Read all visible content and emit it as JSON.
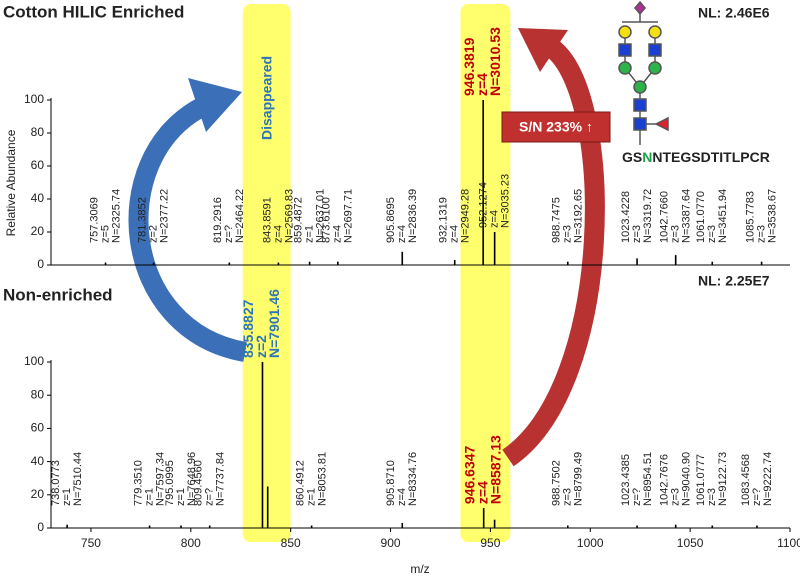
{
  "chart_data": [
    {
      "type": "spectrum",
      "title": "Cotton HILIC Enriched",
      "nl_label": "NL: 2.46E6",
      "y_label": "Relative Abundance",
      "xlim": [
        730,
        1100
      ],
      "ylim": [
        0,
        100
      ],
      "yticks": [
        0,
        20,
        40,
        60,
        80,
        100
      ],
      "color": "#000000",
      "x": [
        757.3069,
        781.3852,
        819.2916,
        843.8591,
        859.4872,
        873.61,
        905.8695,
        932.1319,
        946.3819,
        952.1274,
        988.7475,
        1023.4228,
        1042.766,
        1061.077,
        1085.7783
      ],
      "values": [
        1.5,
        1.5,
        1.5,
        1.5,
        2,
        2,
        8,
        3,
        100,
        20,
        2,
        4,
        6,
        2,
        2
      ],
      "mz_labels": [
        "757.3069",
        "781.3852",
        "819.2916",
        "843.8591",
        "859.4872",
        "873.6100",
        "905.8695",
        "932.1319",
        "946.3819",
        "952.1274",
        "988.7475",
        "1023.4228",
        "1042.7660",
        "1061.0770",
        "1085.7783"
      ],
      "z_labels": [
        "z=5",
        "z=2",
        "z=?",
        "z=4",
        "z=1",
        "z=4",
        "z=4",
        "z=4",
        "z=4",
        "z=4",
        "z=3",
        "z=3",
        "z=3",
        "z=3",
        "z=3"
      ],
      "n_labels": [
        "N=2325.74",
        "N=2377.22",
        "N=2464.22",
        "N=2569.83",
        "N=2637.01",
        "N=2697.71",
        "N=2836.39",
        "N=2949.28",
        "N=3010.53",
        "N=3035.23",
        "N=3192.65",
        "N=3319.72",
        "N=3387.64",
        "N=3451.94",
        "N=3538.67"
      ],
      "label_colors": [
        null,
        null,
        null,
        null,
        null,
        null,
        null,
        null,
        "#c00000",
        null,
        null,
        null,
        null,
        null,
        null
      ]
    },
    {
      "type": "spectrum",
      "title": "Non-enriched",
      "nl_label": "NL: 2.25E7",
      "x_label": "m/z",
      "xlim": [
        730,
        1100
      ],
      "xticks": [
        750,
        800,
        850,
        900,
        950,
        1000,
        1050,
        1100
      ],
      "ylim": [
        0,
        100
      ],
      "yticks": [
        0,
        20,
        40,
        60,
        80,
        100
      ],
      "color": "#000000",
      "x": [
        738.0773,
        779.351,
        795.0995,
        809.456,
        835.8827,
        838.5,
        860.4912,
        905.871,
        946.6347,
        952.1,
        988.7502,
        1023.4385,
        1042.7676,
        1061.0777,
        1083.4568
      ],
      "values": [
        2,
        1.5,
        1.5,
        1.5,
        100,
        25,
        1.5,
        3,
        12,
        5,
        1.5,
        1.5,
        2,
        1.5,
        1.5
      ],
      "mz_labels": [
        "738.0773",
        "779.3510",
        "795.0995",
        "809.4560",
        "835.8827",
        null,
        "860.4912",
        "905.8710",
        "946.6347",
        null,
        "988.7502",
        "1023.4385",
        "1042.7676",
        "1061.0777",
        "1083.4568"
      ],
      "z_labels": [
        "z=1",
        "z=1",
        "z=1",
        "z=?",
        "z=2",
        null,
        "z=1",
        "z=4",
        "z=4",
        null,
        "z=3",
        "z=?",
        "z=3",
        "z=3",
        "z=?"
      ],
      "n_labels": [
        "N=7510.44",
        "N=7597.34",
        "N=7648.96",
        "N=7737.84",
        "N=7901.46",
        null,
        "N=8053.81",
        "N=8334.76",
        "N=8587.13",
        null,
        "N=8799.49",
        "N=8954.51",
        "N=9040.90",
        "N=9122.73",
        "N=9222.74"
      ],
      "label_colors": [
        null,
        null,
        null,
        null,
        "#2e75b6",
        null,
        null,
        null,
        "#c00000",
        null,
        null,
        null,
        null,
        null,
        null
      ]
    }
  ],
  "highlight_ranges": [
    [
      826,
      850
    ],
    [
      935,
      960
    ]
  ],
  "annotations": {
    "disappeared": "Disappeared",
    "sn": "S/N 233% ↑",
    "sequence": [
      "GS",
      "N",
      "NTEGSDTITLPCR"
    ]
  }
}
